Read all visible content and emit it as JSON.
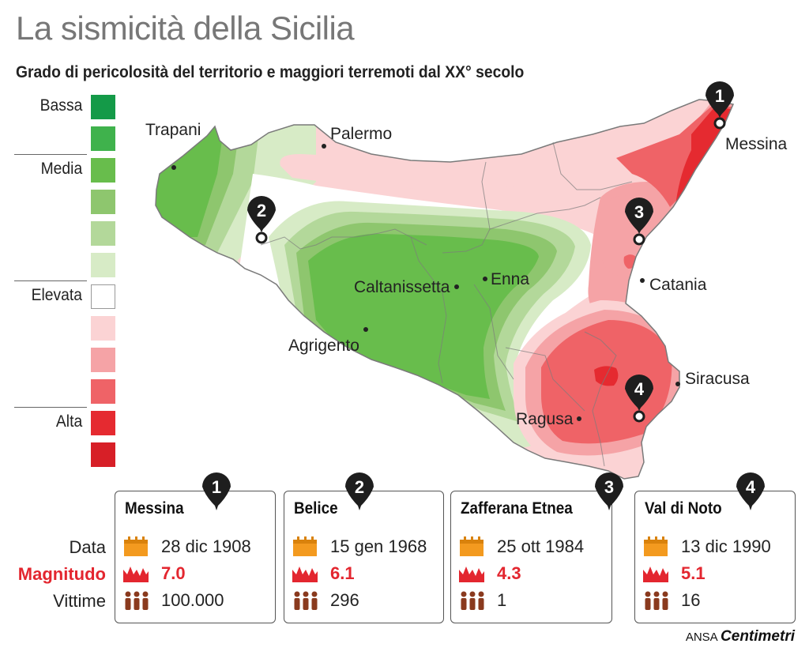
{
  "title": "La sismicità della Sicilia",
  "subtitle": "Grado di pericolosità del territorio e maggiori terremoti dal XX° secolo",
  "legend": {
    "labels": {
      "low": "Bassa",
      "medium": "Media",
      "high": "Elevata",
      "top": "Alta"
    },
    "colors": [
      "#149a48",
      "#3fb24c",
      "#68bd4c",
      "#8ec66e",
      "#b3d89a",
      "#d7ebc6",
      "#ffffff",
      "#fbd3d4",
      "#f5a3a6",
      "#ef6367",
      "#e52a30",
      "#d71f27"
    ]
  },
  "cities": {
    "trapani": "Trapani",
    "palermo": "Palermo",
    "messina": "Messina",
    "catania": "Catania",
    "caltanissetta": "Caltanissetta",
    "enna": "Enna",
    "agrigento": "Agrigento",
    "siracusa": "Siracusa",
    "ragusa": "Ragusa"
  },
  "row_labels": {
    "date": "Data",
    "magnitude": "Magnitudo",
    "victims": "Vittime"
  },
  "quakes": [
    {
      "num": "1",
      "name": "Messina",
      "date": "28 dic 1908",
      "magnitude": "7.0",
      "victims": "100.000"
    },
    {
      "num": "2",
      "name": "Belice",
      "date": "15 gen 1968",
      "magnitude": "6.1",
      "victims": "296"
    },
    {
      "num": "3",
      "name": "Zafferana Etnea",
      "date": "25 ott 1984",
      "magnitude": "4.3",
      "victims": "1"
    },
    {
      "num": "4",
      "name": "Val di Noto",
      "date": "13 dic 1990",
      "magnitude": "5.1",
      "victims": "16"
    }
  ],
  "icons": {
    "date": "calendar-icon",
    "magnitude": "seismograph-icon",
    "victims": "people-icon",
    "marker": "map-pin-icon"
  },
  "source": {
    "prefix": "ANSA",
    "brand": "Centimetri"
  },
  "accent": "#e3262f"
}
